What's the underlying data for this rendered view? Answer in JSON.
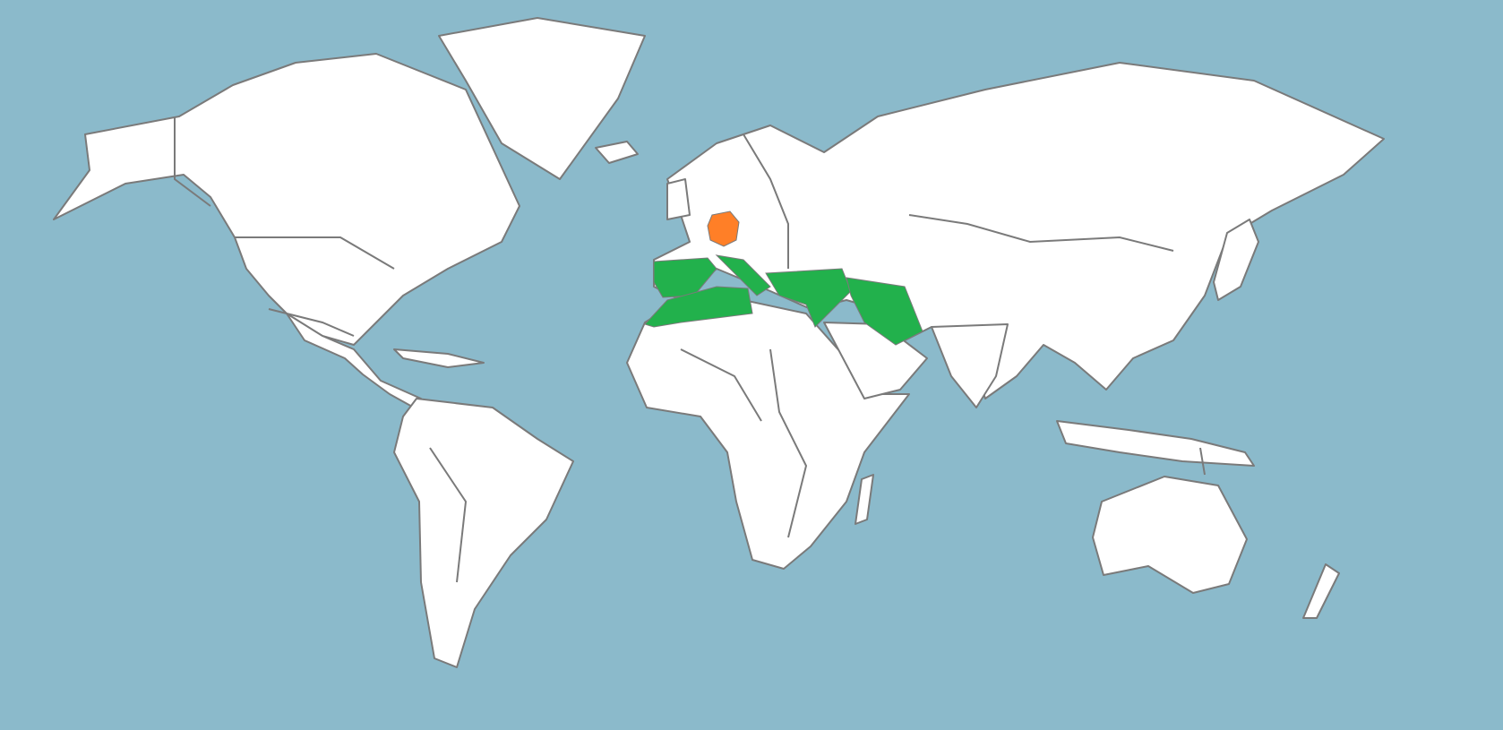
{
  "map": {
    "colors": {
      "ocean": "#8bbacb",
      "land": "#ffffff",
      "border": "#7a7a7a",
      "highlight_primary": "#ff7f27",
      "highlight_secondary": "#22b14c"
    },
    "highlighted_regions": [
      {
        "region": "germany",
        "color": "#ff7f27"
      },
      {
        "region": "mediterranean-basin",
        "color": "#22b14c"
      }
    ]
  }
}
